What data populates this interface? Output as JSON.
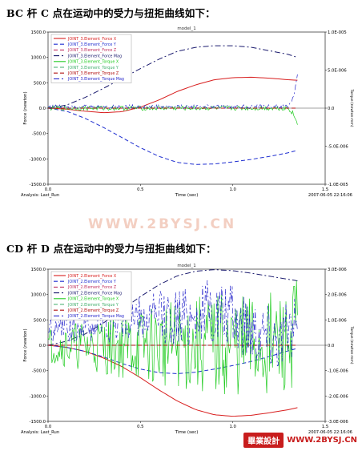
{
  "headings": {
    "first": "BC 杆 C 点在运动中的受力与扭拒曲线如下：",
    "second": "CD 杆 D 点在运动中的受力与扭拒曲线如下："
  },
  "watermark": "WWW.2BYSJ.CN",
  "brand": {
    "logo_text": "畢業設計",
    "url": "WWW.2BYSJ.CN"
  },
  "colors": {
    "force_x": "#d81e1e",
    "force_y": "#1f2fd0",
    "force_z": "#c03060",
    "force_mag": "#1a1a6e",
    "torque_x": "#22cc22",
    "torque_y": "#3fae6a",
    "torque_z": "#b01010",
    "torque_mag": "#2a2acc"
  },
  "chart_data": [
    {
      "type": "line",
      "title": "model_1",
      "xlabel": "Time (sec)",
      "ylabel": "Force (newton)",
      "ylabel_right": "Torque (newton-mm)",
      "xlim": [
        0.0,
        1.5
      ],
      "ylim": [
        -1500,
        1500
      ],
      "ylim_right": [
        -1e-05,
        1e-05
      ],
      "xticks": [
        "0.0",
        "0.5",
        "1.0",
        "1.5"
      ],
      "yticks": [
        "1500.0",
        "1000.0",
        "500.0",
        "0.0",
        "-500.0",
        "-1000.0",
        "-1500.0"
      ],
      "yticks_right": [
        "1.0E-005",
        "5.0E-006",
        "0.0",
        "-5.0E-006",
        "-1.0E-005"
      ],
      "footer_left": "Analysis:  Last_Run",
      "footer_right": "2007-06-05 22:16:06",
      "legend_position": "top-left",
      "series": [
        {
          "name": "JOINT_3.Element_Force X",
          "color_key": "force_x",
          "dash": "solid",
          "axis": "left",
          "x": [
            0.0,
            0.1,
            0.2,
            0.3,
            0.4,
            0.5,
            0.6,
            0.7,
            0.8,
            0.9,
            1.0,
            1.1,
            1.2,
            1.3,
            1.35
          ],
          "y": [
            0,
            -20,
            -60,
            -90,
            -70,
            20,
            160,
            330,
            460,
            560,
            600,
            610,
            590,
            560,
            550
          ]
        },
        {
          "name": "JOINT_3.Element_Force Y",
          "color_key": "force_y",
          "dash": "dash",
          "axis": "left",
          "x": [
            0.0,
            0.1,
            0.2,
            0.3,
            0.4,
            0.5,
            0.6,
            0.7,
            0.8,
            0.9,
            1.0,
            1.1,
            1.2,
            1.3,
            1.35
          ],
          "y": [
            0,
            -60,
            -200,
            -380,
            -580,
            -780,
            -950,
            -1070,
            -1110,
            -1100,
            -1060,
            -1010,
            -950,
            -880,
            -830
          ]
        },
        {
          "name": "JOINT_3.Element_Force Z",
          "color_key": "force_z",
          "dash": "dash",
          "axis": "left",
          "x": [
            0.0,
            1.35
          ],
          "y": [
            0,
            0
          ]
        },
        {
          "name": "JOINT_3.Element_Force Mag",
          "color_key": "force_mag",
          "dash": "dashdot",
          "axis": "left",
          "x": [
            0.0,
            0.1,
            0.2,
            0.3,
            0.4,
            0.5,
            0.6,
            0.7,
            0.8,
            0.9,
            1.0,
            1.1,
            1.2,
            1.3,
            1.35
          ],
          "y": [
            0,
            60,
            210,
            390,
            585,
            780,
            965,
            1120,
            1200,
            1230,
            1230,
            1200,
            1130,
            1060,
            1000
          ]
        },
        {
          "name": "JOINT_3.Element_Torque X",
          "color_key": "torque_x",
          "dash": "solid",
          "axis": "right",
          "noisy": true,
          "amplitude": 3e-07,
          "x": [
            0.0,
            1.3,
            1.33,
            1.35
          ],
          "y": [
            0.0,
            0.0,
            -8e-07,
            -2.2e-06
          ]
        },
        {
          "name": "JOINT_3.Element_Torque Y",
          "color_key": "torque_y",
          "dash": "dash",
          "axis": "right",
          "x": [
            0.0,
            1.35
          ],
          "y": [
            0.0,
            0.0
          ]
        },
        {
          "name": "JOINT_3.Element_Torque Z",
          "color_key": "torque_z",
          "dash": "dash",
          "axis": "right",
          "x": [
            0.0,
            1.35
          ],
          "y": [
            0.0,
            0.0
          ]
        },
        {
          "name": "JOINT_3.Element_Torque Mag",
          "color_key": "torque_mag",
          "dash": "dashdot",
          "axis": "right",
          "noisy": true,
          "amplitude": 2.5e-07,
          "x": [
            0.0,
            1.3,
            1.33,
            1.35
          ],
          "y": [
            2e-07,
            2e-07,
            1.5e-06,
            4.5e-06
          ]
        }
      ]
    },
    {
      "type": "line",
      "title": "model_1",
      "xlabel": "Time (sec)",
      "ylabel": "Force (newton)",
      "ylabel_right": "Torque (newton-mm)",
      "xlim": [
        0.0,
        1.5
      ],
      "ylim": [
        -1500,
        1500
      ],
      "ylim_right": [
        -3e-06,
        3e-06
      ],
      "xticks": [
        "0.0",
        "0.5",
        "1.0",
        "1.5"
      ],
      "yticks": [
        "1500.0",
        "1000.0",
        "500.0",
        "0.0",
        "-500.0",
        "-1000.0",
        "-1500.0"
      ],
      "yticks_right": [
        "3.0E-006",
        "2.0E-006",
        "1.0E-006",
        "0.0",
        "-1.0E-006",
        "-2.0E-006",
        "-3.0E-006"
      ],
      "footer_left": "Analysis:  Last_Run",
      "footer_right": "2007-06-05 22:16:06",
      "legend_position": "top-left",
      "series": [
        {
          "name": "JOINT_2.Element_Force X",
          "color_key": "force_x",
          "dash": "solid",
          "axis": "left",
          "x": [
            0.0,
            0.1,
            0.2,
            0.3,
            0.4,
            0.5,
            0.6,
            0.7,
            0.8,
            0.9,
            1.0,
            1.1,
            1.2,
            1.3,
            1.35
          ],
          "y": [
            0,
            -40,
            -120,
            -250,
            -420,
            -640,
            -880,
            -1100,
            -1270,
            -1370,
            -1400,
            -1380,
            -1330,
            -1270,
            -1230
          ]
        },
        {
          "name": "JOINT_2.Element_Force Y",
          "color_key": "force_y",
          "dash": "dash",
          "axis": "left",
          "x": [
            0.0,
            0.1,
            0.2,
            0.3,
            0.4,
            0.5,
            0.6,
            0.7,
            0.8,
            0.9,
            1.0,
            1.1,
            1.2,
            1.3,
            1.35
          ],
          "y": [
            0,
            -40,
            -120,
            -230,
            -360,
            -470,
            -540,
            -560,
            -530,
            -470,
            -400,
            -320,
            -220,
            -110,
            -60
          ]
        },
        {
          "name": "JOINT_2.Element_Force Z",
          "color_key": "force_z",
          "dash": "dash",
          "axis": "left",
          "x": [
            0.0,
            1.35
          ],
          "y": [
            0,
            0
          ]
        },
        {
          "name": "JOINT_2.Element_Force Mag",
          "color_key": "force_mag",
          "dash": "dashdot",
          "axis": "left",
          "x": [
            0.0,
            0.1,
            0.2,
            0.3,
            0.4,
            0.5,
            0.6,
            0.7,
            0.8,
            0.9,
            1.0,
            1.1,
            1.2,
            1.3,
            1.35
          ],
          "y": [
            0,
            80,
            220,
            440,
            700,
            960,
            1190,
            1370,
            1460,
            1490,
            1470,
            1420,
            1360,
            1300,
            1270
          ]
        },
        {
          "name": "JOINT_2.Element_Torque X",
          "color_key": "torque_x",
          "dash": "solid",
          "axis": "right",
          "noisy": true,
          "amplitude": 1.4e-06,
          "x": [
            0.0,
            1.1,
            1.3,
            1.35
          ],
          "y": [
            0.0,
            0.0,
            0.0,
            1e-06
          ]
        },
        {
          "name": "JOINT_2.Element_Torque Y",
          "color_key": "torque_y",
          "dash": "dash",
          "axis": "right",
          "x": [
            0.0,
            1.35
          ],
          "y": [
            0.0,
            0.0
          ]
        },
        {
          "name": "JOINT_2.Element_Torque Z",
          "color_key": "torque_z",
          "dash": "dash",
          "axis": "right",
          "x": [
            0.0,
            1.35
          ],
          "y": [
            0.0,
            0.0
          ]
        },
        {
          "name": "JOINT_2.Element_Torque Mag",
          "color_key": "torque_mag",
          "dash": "dashdot",
          "axis": "right",
          "noisy": true,
          "amplitude": 9e-07,
          "x": [
            0.0,
            0.5,
            0.9,
            1.1,
            1.3,
            1.35
          ],
          "y": [
            6e-07,
            1e-06,
            1.3e-06,
            8e-07,
            3e-07,
            9e-07
          ]
        }
      ]
    }
  ]
}
